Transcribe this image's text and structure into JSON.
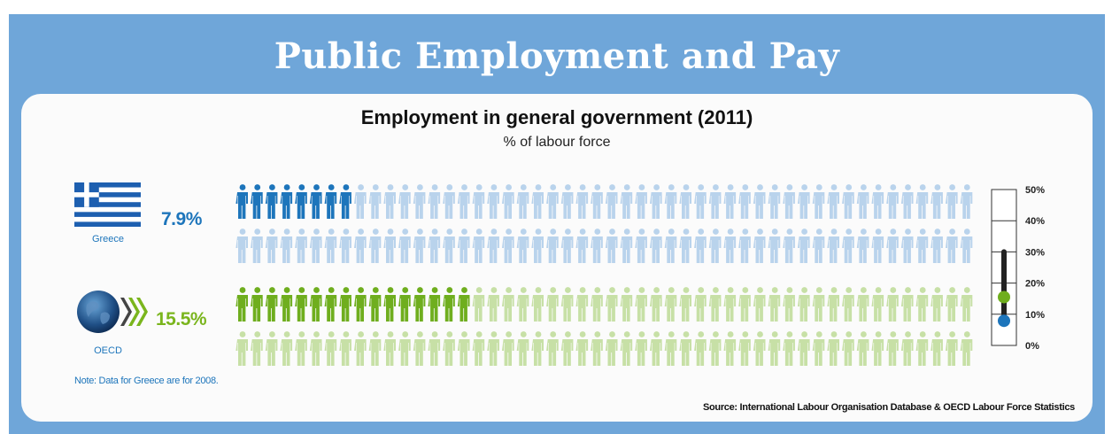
{
  "header": {
    "title": "Public Employment and Pay"
  },
  "chart_data": {
    "type": "pictogram",
    "title": "Employment in general government (2011)",
    "subtitle": "% of labour force",
    "icons_per_series": 100,
    "series": [
      {
        "name": "Greece",
        "value": 7.9,
        "value_label": "7.9%",
        "color": "#1d75bb",
        "light_color": "#b9d3ec"
      },
      {
        "name": "OECD",
        "value": 15.5,
        "value_label": "15.5%",
        "color": "#6fae1e",
        "light_color": "#c7e0a6"
      }
    ],
    "scale": {
      "ticks": [
        "0%",
        "10%",
        "20%",
        "30%",
        "40%",
        "50%"
      ],
      "range_low": 10,
      "range_high": 30
    },
    "note": "Note: Data for Greece are for 2008.",
    "source": "Source: International Labour Organisation Database & OECD Labour Force Statistics"
  },
  "colors": {
    "frame": "#6fa6d9",
    "greece": "#1d75bb",
    "oecd": "#7ab51d",
    "scale_bar": "#222222"
  }
}
